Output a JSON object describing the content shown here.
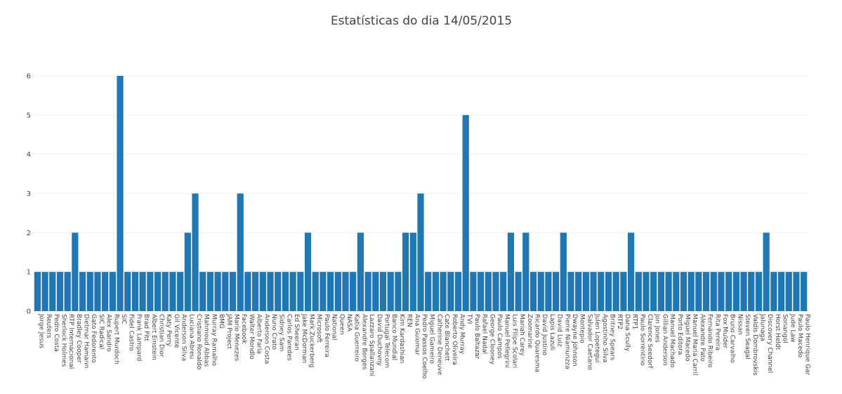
{
  "chart_data": {
    "type": "bar",
    "title": "Estatísticas do dia 14/05/2015",
    "xlabel": "",
    "ylabel": "",
    "ylim": [
      0,
      6
    ],
    "yticks": [
      0,
      1,
      2,
      3,
      4,
      5,
      6
    ],
    "grid": true,
    "bar_color": "#1f77b4",
    "categories": [
      "Jorge Jesus",
      "Reuters",
      "Pedro Costa",
      "Sherlock Holmes",
      "RTP Internacional",
      "Bradley Cooper",
      "Dietmar Hamann",
      "Gato Fedorento",
      "SIC Radical",
      "Alex Sandro",
      "Rupert Murdoch",
      "SIC",
      "Fidel Castro",
      "Frank Lampard",
      "Brad Pitt",
      "Albert Einstein",
      "Christian Dior",
      "Katy Perry",
      "Gil Vicente",
      "Anderson Silva",
      "Luciana Abreu",
      "Cristiano Ronaldo",
      "Mahmoud Abbas",
      "Murray Ramalho",
      "BMG",
      "JAM Project",
      "Mario Menezes",
      "Facebook",
      "Walter Mondlo",
      "Alberto Faria",
      "Anderson Costa",
      "Nuno Crato",
      "Sidney Sam",
      "Carlos Paredes",
      "Ed Sheeran",
      "Jake McDorman",
      "Mark Zuckerberg",
      "Microsoft",
      "Paulo Ferreira",
      "National",
      "Queen",
      "NASA",
      "Katia Guerreiro",
      "Alexandre Borges",
      "Lazzaro Spallanzani",
      "David Duchovny",
      "Portugal Telecom",
      "Banco Mundial",
      "Kim Kardashian",
      "REN",
      "Ana Guiomar",
      "Pedro Passos Coelho",
      "Miguel Gameiro",
      "Catherine Deneuve",
      "Cate Blanchett",
      "Roberto Oliveira",
      "Andy Murray",
      "TVI",
      "Paulo Baltazar",
      "Rafael Nadal",
      "George Clooney",
      "Paulo Campos",
      "Manuel Pellegrini",
      "Luis Filipe Scolari",
      "Mariah Carey",
      "Zoomarine",
      "Ricardo Quaresma",
      "David Justino",
      "Lapis Lazuli",
      "David Luiz",
      "Pierre Niamunzza",
      "Dwayne Johnson",
      "Montepio",
      "Salvador Caetano",
      "Julen Lopetegui",
      "Agostinho Silva",
      "Britney Spears",
      "RTP2",
      "Dana Scully",
      "RTP1",
      "Paulo Sorrentino",
      "Clarence Seedorf",
      "Jon Jones",
      "Gillian Anderson",
      "Manuel Machado",
      "Porto Editora",
      "Miguel Macedo",
      "Manuel Maria Carril",
      "Alexandre Pato",
      "Fernando Ribeiro",
      "Rita Pereira",
      "Fox Mulder",
      "Bruno Carvalho",
      "Nissan",
      "Steven Seagal",
      "Valdis Dombrovskis",
      "Jalunaga",
      "Discovery Channel",
      "Horst Heldt",
      "Sonangol",
      "Jude Law",
      "Paulo Macedo",
      "Paulo Henrique Gar"
    ],
    "values": [
      1,
      1,
      1,
      1,
      1,
      2,
      1,
      1,
      1,
      1,
      1,
      6,
      1,
      1,
      1,
      1,
      1,
      1,
      1,
      1,
      2,
      3,
      1,
      1,
      1,
      1,
      1,
      3,
      1,
      1,
      1,
      1,
      1,
      1,
      1,
      1,
      2,
      1,
      1,
      1,
      1,
      1,
      1,
      2,
      1,
      1,
      1,
      1,
      1,
      2,
      2,
      3,
      1,
      1,
      1,
      1,
      1,
      5,
      1,
      1,
      1,
      1,
      1,
      2,
      1,
      2,
      1,
      1,
      1,
      1,
      2,
      1,
      1,
      1,
      1,
      1,
      1,
      1,
      1,
      2,
      1,
      1,
      1,
      1,
      1,
      1,
      1,
      1,
      1,
      1,
      1,
      1,
      1,
      1,
      1,
      1,
      1,
      2,
      1,
      1,
      1,
      1,
      1
    ]
  }
}
